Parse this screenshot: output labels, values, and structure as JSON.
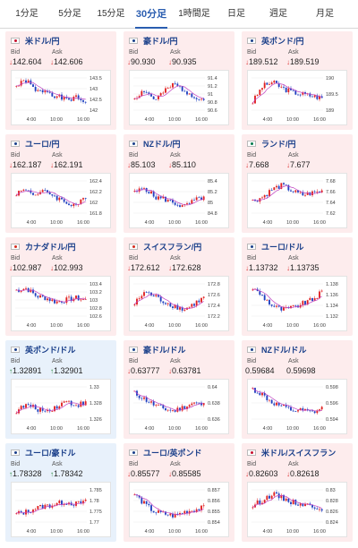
{
  "tabs": [
    {
      "label": "1分足",
      "active": false
    },
    {
      "label": "5分足",
      "active": false
    },
    {
      "label": "15分足",
      "active": false
    },
    {
      "label": "30分足",
      "active": true
    },
    {
      "label": "1時間足",
      "active": false
    },
    {
      "label": "日足",
      "active": false
    },
    {
      "label": "週足",
      "active": false
    },
    {
      "label": "月足",
      "active": false
    }
  ],
  "labels": {
    "bid": "Bid",
    "ask": "Ask"
  },
  "colors": {
    "up": "#2a8a3a",
    "down": "#d33",
    "bull": "#e02020",
    "bear": "#2040c0",
    "ma": "#c040c0",
    "pink_bg": "#fdeced",
    "blue_bg": "#e8f1fb"
  },
  "pairs": [
    {
      "name": "米ドル/円",
      "bid": "142.604",
      "ask": "142.606",
      "dir": "down",
      "bg": "pink",
      "flag": "us",
      "yticks": [
        "143.5",
        "143",
        "142.5",
        "142"
      ],
      "xticks": [
        "4:00",
        "10:00",
        "16:00"
      ],
      "seed": 1,
      "trend": [
        0.7,
        0.85,
        0.55,
        0.6,
        0.45,
        0.35,
        0.4,
        0.3
      ]
    },
    {
      "name": "豪ドル/円",
      "bid": "90.930",
      "ask": "90.935",
      "dir": "down",
      "bg": "pink",
      "flag": "au",
      "yticks": [
        "91.4",
        "91.2",
        "91",
        "90.8",
        "90.6"
      ],
      "xticks": [
        "4:00",
        "10:00",
        "16:00"
      ],
      "seed": 2,
      "trend": [
        0.4,
        0.6,
        0.35,
        0.55,
        0.75,
        0.6,
        0.45,
        0.35
      ]
    },
    {
      "name": "英ポンド/円",
      "bid": "189.512",
      "ask": "189.519",
      "dir": "down",
      "bg": "pink",
      "flag": "uk",
      "yticks": [
        "190",
        "189.5",
        "189"
      ],
      "xticks": [
        "4:00",
        "10:00",
        "16:00"
      ],
      "seed": 3,
      "trend": [
        0.3,
        0.7,
        0.8,
        0.65,
        0.55,
        0.5,
        0.45,
        0.4
      ]
    },
    {
      "name": "ユーロ/円",
      "bid": "162.187",
      "ask": "162.191",
      "dir": "down",
      "bg": "pink",
      "flag": "eu",
      "yticks": [
        "162.4",
        "162.2",
        "162",
        "161.8"
      ],
      "xticks": [
        "4:00",
        "10:00",
        "16:00"
      ],
      "seed": 4,
      "trend": [
        0.6,
        0.7,
        0.55,
        0.65,
        0.5,
        0.35,
        0.3,
        0.45
      ]
    },
    {
      "name": "NZドル/円",
      "bid": "85.103",
      "ask": "85.110",
      "dir": "down",
      "bg": "pink",
      "flag": "nz",
      "yticks": [
        "85.4",
        "85.2",
        "85",
        "84.8"
      ],
      "xticks": [
        "4:00",
        "10:00",
        "16:00"
      ],
      "seed": 5,
      "trend": [
        0.6,
        0.75,
        0.5,
        0.45,
        0.35,
        0.25,
        0.4,
        0.5
      ]
    },
    {
      "name": "ランド/円",
      "bid": "7.668",
      "ask": "7.677",
      "dir": "down",
      "bg": "pink",
      "flag": "za",
      "yticks": [
        "7.68",
        "7.66",
        "7.64",
        "7.62"
      ],
      "xticks": [
        "4:00",
        "10:00",
        "16:00"
      ],
      "seed": 6,
      "trend": [
        0.4,
        0.5,
        0.7,
        0.8,
        0.65,
        0.55,
        0.6,
        0.65
      ]
    },
    {
      "name": "カナダドル/円",
      "bid": "102.987",
      "ask": "102.993",
      "dir": "down",
      "bg": "pink",
      "flag": "ca",
      "yticks": [
        "103.4",
        "103.2",
        "103",
        "102.8",
        "102.6"
      ],
      "xticks": [
        "4:00",
        "10:00",
        "16:00"
      ],
      "seed": 7,
      "trend": [
        0.75,
        0.8,
        0.6,
        0.55,
        0.45,
        0.5,
        0.55,
        0.5
      ]
    },
    {
      "name": "スイスフラン/円",
      "bid": "172.612",
      "ask": "172.628",
      "dir": "down",
      "bg": "pink",
      "flag": "ch",
      "yticks": [
        "172.8",
        "172.6",
        "172.4",
        "172.2"
      ],
      "xticks": [
        "4:00",
        "10:00",
        "16:00"
      ],
      "seed": 8,
      "trend": [
        0.4,
        0.7,
        0.6,
        0.45,
        0.35,
        0.25,
        0.4,
        0.55
      ]
    },
    {
      "name": "ユーロ/ドル",
      "bid": "1.13732",
      "ask": "1.13735",
      "dir": "down",
      "bg": "pink",
      "flag": "euus",
      "yticks": [
        "1.138",
        "1.136",
        "1.134",
        "1.132"
      ],
      "xticks": [
        "4:00",
        "10:00",
        "16:00"
      ],
      "seed": 9,
      "trend": [
        0.8,
        0.6,
        0.35,
        0.25,
        0.3,
        0.4,
        0.5,
        0.7
      ]
    },
    {
      "name": "英ポンド/ドル",
      "bid": "1.32891",
      "ask": "1.32901",
      "dir": "up",
      "bg": "blue",
      "flag": "ukus",
      "yticks": [
        "1.33",
        "1.328",
        "1.326"
      ],
      "xticks": [
        "4:00",
        "10:00",
        "16:00"
      ],
      "seed": 10,
      "trend": [
        0.3,
        0.45,
        0.35,
        0.3,
        0.4,
        0.55,
        0.45,
        0.5
      ]
    },
    {
      "name": "豪ドル/ドル",
      "bid": "0.63777",
      "ask": "0.63781",
      "dir": "down",
      "bg": "pink",
      "flag": "auus",
      "yticks": [
        "0.64",
        "0.638",
        "0.636"
      ],
      "xticks": [
        "4:00",
        "10:00",
        "16:00"
      ],
      "seed": 11,
      "trend": [
        0.75,
        0.6,
        0.45,
        0.35,
        0.3,
        0.4,
        0.5,
        0.45
      ]
    },
    {
      "name": "NZドル/ドル",
      "bid": "0.59684",
      "ask": "0.59698",
      "dir": "none",
      "bg": "pink",
      "flag": "nzus",
      "yticks": [
        "0.598",
        "0.596",
        "0.594"
      ],
      "xticks": [
        "4:00",
        "10:00",
        "16:00"
      ],
      "seed": 12,
      "trend": [
        0.85,
        0.7,
        0.5,
        0.4,
        0.3,
        0.3,
        0.25,
        0.35
      ]
    },
    {
      "name": "ユーロ/豪ドル",
      "bid": "1.78328",
      "ask": "1.78342",
      "dir": "up",
      "bg": "blue",
      "flag": "euau",
      "yticks": [
        "1.785",
        "1.78",
        "1.775",
        "1.77"
      ],
      "xticks": [
        "4:00",
        "10:00",
        "16:00"
      ],
      "seed": 13,
      "trend": [
        0.3,
        0.35,
        0.45,
        0.5,
        0.55,
        0.6,
        0.55,
        0.6
      ]
    },
    {
      "name": "ユーロ/英ポンド",
      "bid": "0.85577",
      "ask": "0.85585",
      "dir": "down",
      "bg": "pink",
      "flag": "euuk",
      "yticks": [
        "0.857",
        "0.856",
        "0.855",
        "0.854"
      ],
      "xticks": [
        "4:00",
        "10:00",
        "16:00"
      ],
      "seed": 14,
      "trend": [
        0.8,
        0.55,
        0.35,
        0.3,
        0.25,
        0.35,
        0.4,
        0.45
      ]
    },
    {
      "name": "米ドル/スイスフラン",
      "bid": "0.82603",
      "ask": "0.82618",
      "dir": "down",
      "bg": "pink",
      "flag": "usch",
      "yticks": [
        "0.83",
        "0.828",
        "0.826",
        "0.824"
      ],
      "xticks": [
        "4:00",
        "10:00",
        "16:00"
      ],
      "seed": 15,
      "trend": [
        0.5,
        0.65,
        0.8,
        0.7,
        0.6,
        0.55,
        0.5,
        0.45
      ]
    }
  ]
}
